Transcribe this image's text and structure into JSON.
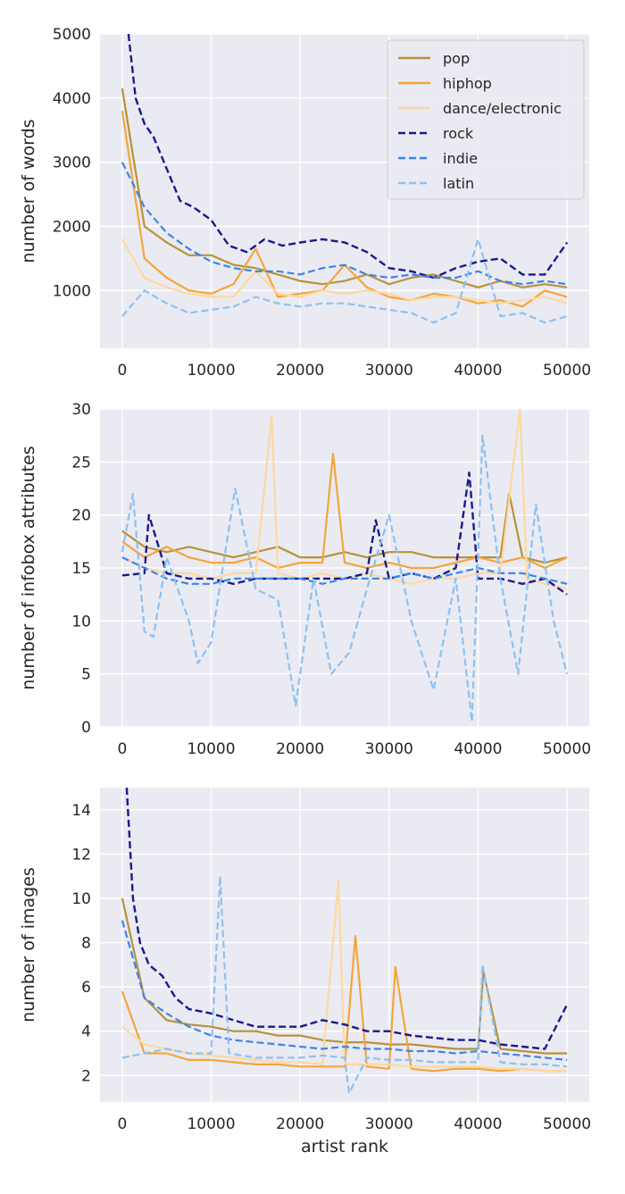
{
  "colors": {
    "background": "#eaeaf2",
    "grid": "#ffffff",
    "pop": "#b8923a",
    "hiphop": "#f5a53a",
    "dance": "#fcd9a0",
    "rock": "#1a1a8c",
    "indie": "#3d85e6",
    "latin": "#8cc2f2"
  },
  "legend": {
    "placement": "top-right of first panel",
    "entries": [
      {
        "key": "pop",
        "label": "pop",
        "style": "solid"
      },
      {
        "key": "hiphop",
        "label": "hiphop",
        "style": "solid"
      },
      {
        "key": "dance",
        "label": "dance/electronic",
        "style": "solid"
      },
      {
        "key": "rock",
        "label": "rock",
        "style": "dashed"
      },
      {
        "key": "indie",
        "label": "indie",
        "style": "dashed"
      },
      {
        "key": "latin",
        "label": "latin",
        "style": "dashed"
      }
    ]
  },
  "chart_data": [
    {
      "type": "line",
      "title": "",
      "xlabel": "",
      "ylabel": "number of words",
      "xlim": [
        -2500,
        52500
      ],
      "ylim": [
        100,
        5000
      ],
      "xticks": [
        0,
        10000,
        20000,
        30000,
        40000,
        50000
      ],
      "yticks": [
        1000,
        2000,
        3000,
        4000,
        5000
      ],
      "grid": true,
      "series": [
        {
          "key": "pop",
          "name": "pop",
          "style": "solid",
          "x": [
            0,
            2500,
            5000,
            7500,
            10000,
            12500,
            15000,
            17500,
            20000,
            22500,
            25000,
            27500,
            30000,
            32500,
            35000,
            37500,
            40000,
            42500,
            45000,
            47500,
            50000
          ],
          "y": [
            4150,
            2000,
            1750,
            1550,
            1550,
            1400,
            1350,
            1250,
            1150,
            1100,
            1150,
            1250,
            1100,
            1200,
            1250,
            1150,
            1050,
            1150,
            1050,
            1100,
            1050
          ]
        },
        {
          "key": "hiphop",
          "name": "hiphop",
          "style": "solid",
          "x": [
            0,
            2500,
            5000,
            7500,
            10000,
            12500,
            15000,
            17500,
            20000,
            22500,
            25000,
            27500,
            30000,
            32500,
            35000,
            37500,
            40000,
            42500,
            45000,
            47500,
            50000
          ],
          "y": [
            3800,
            1500,
            1200,
            1000,
            950,
            1100,
            1650,
            900,
            950,
            1000,
            1400,
            1050,
            900,
            850,
            950,
            900,
            800,
            850,
            750,
            1000,
            900
          ]
        },
        {
          "key": "dance",
          "name": "dance/electronic",
          "style": "solid",
          "x": [
            0,
            2500,
            5000,
            7500,
            10000,
            12500,
            15000,
            17500,
            20000,
            22500,
            25000,
            27500,
            30000,
            32500,
            35000,
            37500,
            40000,
            42500,
            45000,
            47500,
            50000
          ],
          "y": [
            1800,
            1200,
            1050,
            950,
            900,
            900,
            1300,
            950,
            900,
            1000,
            950,
            1000,
            950,
            850,
            900,
            900,
            850,
            800,
            850,
            900,
            800
          ]
        },
        {
          "key": "rock",
          "name": "rock",
          "style": "dashed",
          "x": [
            700,
            1500,
            2500,
            3500,
            5000,
            6500,
            8000,
            10000,
            12000,
            14000,
            16000,
            18000,
            20000,
            22500,
            25000,
            27500,
            30000,
            32500,
            35000,
            37500,
            40000,
            42500,
            45000,
            47500,
            50000
          ],
          "y": [
            5000,
            4000,
            3600,
            3400,
            2900,
            2400,
            2300,
            2100,
            1700,
            1600,
            1800,
            1700,
            1750,
            1800,
            1750,
            1600,
            1350,
            1300,
            1200,
            1350,
            1450,
            1500,
            1250,
            1250,
            1750
          ]
        },
        {
          "key": "indie",
          "name": "indie",
          "style": "dashed",
          "x": [
            0,
            2500,
            5000,
            7500,
            10000,
            12500,
            15000,
            17500,
            20000,
            22500,
            25000,
            27500,
            30000,
            32500,
            35000,
            37500,
            40000,
            42500,
            45000,
            47500,
            50000
          ],
          "y": [
            3000,
            2300,
            1900,
            1650,
            1450,
            1350,
            1300,
            1300,
            1250,
            1350,
            1400,
            1250,
            1200,
            1250,
            1200,
            1200,
            1300,
            1150,
            1100,
            1150,
            1100
          ]
        },
        {
          "key": "latin",
          "name": "latin",
          "style": "dashed",
          "x": [
            0,
            2500,
            5000,
            7500,
            10000,
            12500,
            15000,
            17500,
            20000,
            22500,
            25000,
            27500,
            30000,
            32500,
            35000,
            37500,
            40000,
            42500,
            45000,
            47500,
            50000
          ],
          "y": [
            600,
            1000,
            800,
            650,
            700,
            750,
            900,
            800,
            750,
            800,
            800,
            750,
            700,
            650,
            500,
            650,
            1800,
            600,
            650,
            500,
            600
          ]
        }
      ]
    },
    {
      "type": "line",
      "title": "",
      "xlabel": "",
      "ylabel": "number of infobox attributes",
      "xlim": [
        -2500,
        52500
      ],
      "ylim": [
        0,
        30
      ],
      "xticks": [
        0,
        10000,
        20000,
        30000,
        40000,
        50000
      ],
      "yticks": [
        0,
        5,
        10,
        15,
        20,
        25,
        30
      ],
      "grid": true,
      "series": [
        {
          "key": "pop",
          "name": "pop",
          "style": "solid",
          "x": [
            0,
            2500,
            5000,
            7500,
            10000,
            12500,
            15000,
            17500,
            20000,
            22500,
            25000,
            27500,
            30000,
            32500,
            35000,
            37500,
            40000,
            42500,
            43500,
            45000,
            47500,
            50000
          ],
          "y": [
            18.5,
            17,
            16.5,
            17,
            16.5,
            16,
            16.5,
            17,
            16,
            16,
            16.5,
            16,
            16.5,
            16.5,
            16,
            16,
            16,
            16,
            22,
            16,
            15.5,
            16
          ]
        },
        {
          "key": "hiphop",
          "name": "hiphop",
          "style": "solid",
          "x": [
            0,
            2500,
            5000,
            7500,
            10000,
            12500,
            15000,
            17500,
            20000,
            22500,
            23700,
            25000,
            27500,
            30000,
            32500,
            35000,
            37500,
            40000,
            42500,
            45000,
            47500,
            50000
          ],
          "y": [
            17.5,
            16,
            17,
            16,
            15.5,
            15.5,
            16,
            15,
            15.5,
            15.5,
            25.8,
            15.5,
            15,
            15.5,
            15,
            15,
            15.5,
            16,
            15.5,
            16,
            15,
            16
          ]
        },
        {
          "key": "dance",
          "name": "dance/electronic",
          "style": "solid",
          "x": [
            0,
            2500,
            5000,
            7500,
            10000,
            12500,
            15000,
            16800,
            17500,
            20000,
            22500,
            25000,
            27500,
            30000,
            32500,
            35000,
            37500,
            40000,
            42500,
            44700,
            45500,
            47500,
            50000
          ],
          "y": [
            16,
            15,
            14.5,
            14.5,
            14,
            14.5,
            14.5,
            29.3,
            14.5,
            14,
            14.5,
            14,
            14.5,
            14,
            13.5,
            14,
            14,
            14.5,
            14.5,
            30,
            14,
            13.5,
            13
          ]
        },
        {
          "key": "rock",
          "name": "rock",
          "style": "dashed",
          "x": [
            0,
            2500,
            3000,
            5000,
            7500,
            10000,
            12500,
            15000,
            17500,
            20000,
            22500,
            25000,
            27500,
            28500,
            30000,
            32500,
            35000,
            37500,
            39000,
            40000,
            42500,
            45000,
            47500,
            50000
          ],
          "y": [
            14.3,
            14.5,
            20,
            14.5,
            14,
            14,
            13.5,
            14,
            14,
            14,
            14,
            14,
            14.5,
            19.5,
            14,
            14.5,
            14,
            15,
            24,
            14,
            14,
            13.5,
            14,
            12.5
          ]
        },
        {
          "key": "indie",
          "name": "indie",
          "style": "dashed",
          "x": [
            0,
            2500,
            5000,
            7500,
            10000,
            12500,
            15000,
            17500,
            20000,
            22500,
            25000,
            27500,
            30000,
            32500,
            35000,
            37500,
            40000,
            42500,
            45000,
            47500,
            50000
          ],
          "y": [
            16,
            15,
            14,
            13.5,
            13.5,
            14,
            14,
            14,
            14,
            13.5,
            14,
            14,
            14,
            14.5,
            14,
            14.5,
            15,
            14.5,
            14.5,
            14,
            13.5
          ]
        },
        {
          "key": "latin",
          "name": "latin",
          "style": "dashed",
          "x": [
            0,
            1200,
            2500,
            3500,
            5000,
            7500,
            8500,
            10000,
            12700,
            15000,
            17500,
            19500,
            21500,
            23500,
            25500,
            27500,
            30000,
            32500,
            35000,
            37500,
            39300,
            40500,
            42500,
            44500,
            46500,
            48500,
            50000
          ],
          "y": [
            16.5,
            22,
            9,
            8.5,
            16,
            10,
            6,
            8,
            22.5,
            13,
            12,
            2,
            14,
            5,
            7,
            13,
            20,
            10,
            3.5,
            14,
            0.5,
            27.5,
            14,
            5,
            21,
            10,
            5
          ]
        }
      ]
    },
    {
      "type": "line",
      "title": "",
      "xlabel": "artist rank",
      "ylabel": "number of images",
      "xlim": [
        -2500,
        52500
      ],
      "ylim": [
        0.8,
        15
      ],
      "xticks": [
        0,
        10000,
        20000,
        30000,
        40000,
        50000
      ],
      "yticks": [
        2,
        4,
        6,
        8,
        10,
        12,
        14
      ],
      "grid": true,
      "series": [
        {
          "key": "pop",
          "name": "pop",
          "style": "solid",
          "x": [
            0,
            2500,
            5000,
            7500,
            10000,
            12500,
            15000,
            17500,
            20000,
            22500,
            25000,
            27500,
            30000,
            32500,
            35000,
            37500,
            40000,
            40600,
            42500,
            45000,
            47500,
            50000
          ],
          "y": [
            10,
            5.5,
            4.5,
            4.3,
            4.2,
            4,
            4,
            3.8,
            3.8,
            3.6,
            3.5,
            3.5,
            3.4,
            3.4,
            3.3,
            3.2,
            3.2,
            6.7,
            3.2,
            3.1,
            3,
            3
          ]
        },
        {
          "key": "hiphop",
          "name": "hiphop",
          "style": "solid",
          "x": [
            0,
            2500,
            5000,
            7500,
            10000,
            12500,
            15000,
            17500,
            20000,
            22500,
            25000,
            26200,
            27500,
            30000,
            30700,
            32500,
            35000,
            37500,
            40000,
            42500,
            45000,
            47500,
            50000
          ],
          "y": [
            5.8,
            3,
            3,
            2.7,
            2.7,
            2.6,
            2.5,
            2.5,
            2.4,
            2.4,
            2.4,
            8.3,
            2.4,
            2.3,
            6.9,
            2.3,
            2.2,
            2.3,
            2.3,
            2.2,
            2.3,
            2.2,
            2.2
          ]
        },
        {
          "key": "dance",
          "name": "dance/electronic",
          "style": "solid",
          "x": [
            0,
            2500,
            5000,
            7500,
            10000,
            12500,
            15000,
            17500,
            20000,
            22500,
            24300,
            25000,
            27500,
            30000,
            32500,
            35000,
            37500,
            40000,
            42500,
            45000,
            47500,
            50000
          ],
          "y": [
            4.2,
            3.4,
            3.2,
            3,
            2.9,
            2.8,
            2.7,
            2.6,
            2.6,
            2.5,
            10.8,
            2.5,
            2.5,
            2.5,
            2.4,
            2.4,
            2.4,
            2.4,
            2.3,
            2.3,
            2.2,
            2.2
          ]
        },
        {
          "key": "rock",
          "name": "rock",
          "style": "dashed",
          "x": [
            500,
            1200,
            2000,
            3000,
            4500,
            6000,
            7500,
            10000,
            12500,
            15000,
            17500,
            20000,
            22500,
            25000,
            27500,
            30000,
            32500,
            35000,
            37500,
            40000,
            42500,
            45000,
            47500,
            50000
          ],
          "y": [
            15,
            10,
            8,
            7,
            6.5,
            5.5,
            5,
            4.8,
            4.5,
            4.2,
            4.2,
            4.2,
            4.5,
            4.3,
            4,
            4,
            3.8,
            3.7,
            3.6,
            3.6,
            3.4,
            3.3,
            3.2,
            5.2
          ]
        },
        {
          "key": "indie",
          "name": "indie",
          "style": "dashed",
          "x": [
            0,
            2500,
            5000,
            7500,
            10000,
            12500,
            15000,
            17500,
            20000,
            22500,
            25000,
            27500,
            30000,
            32500,
            35000,
            37500,
            40000,
            42500,
            45000,
            47500,
            50000
          ],
          "y": [
            9,
            5.5,
            4.8,
            4.2,
            3.8,
            3.6,
            3.5,
            3.4,
            3.3,
            3.2,
            3.3,
            3.2,
            3.2,
            3.1,
            3.1,
            3,
            3.1,
            3,
            2.9,
            2.8,
            2.7
          ]
        },
        {
          "key": "latin",
          "name": "latin",
          "style": "dashed",
          "x": [
            0,
            2500,
            5000,
            7500,
            10000,
            11000,
            12000,
            15000,
            17500,
            20000,
            22500,
            25000,
            25500,
            27500,
            30000,
            32500,
            35000,
            37500,
            40000,
            40500,
            42500,
            45000,
            47500,
            50000
          ],
          "y": [
            2.8,
            3,
            3.2,
            3,
            3,
            11,
            3,
            2.8,
            2.8,
            2.8,
            2.9,
            2.8,
            1.2,
            2.8,
            2.7,
            2.7,
            2.6,
            2.6,
            2.6,
            7,
            2.6,
            2.5,
            2.5,
            2.4
          ]
        }
      ]
    }
  ]
}
